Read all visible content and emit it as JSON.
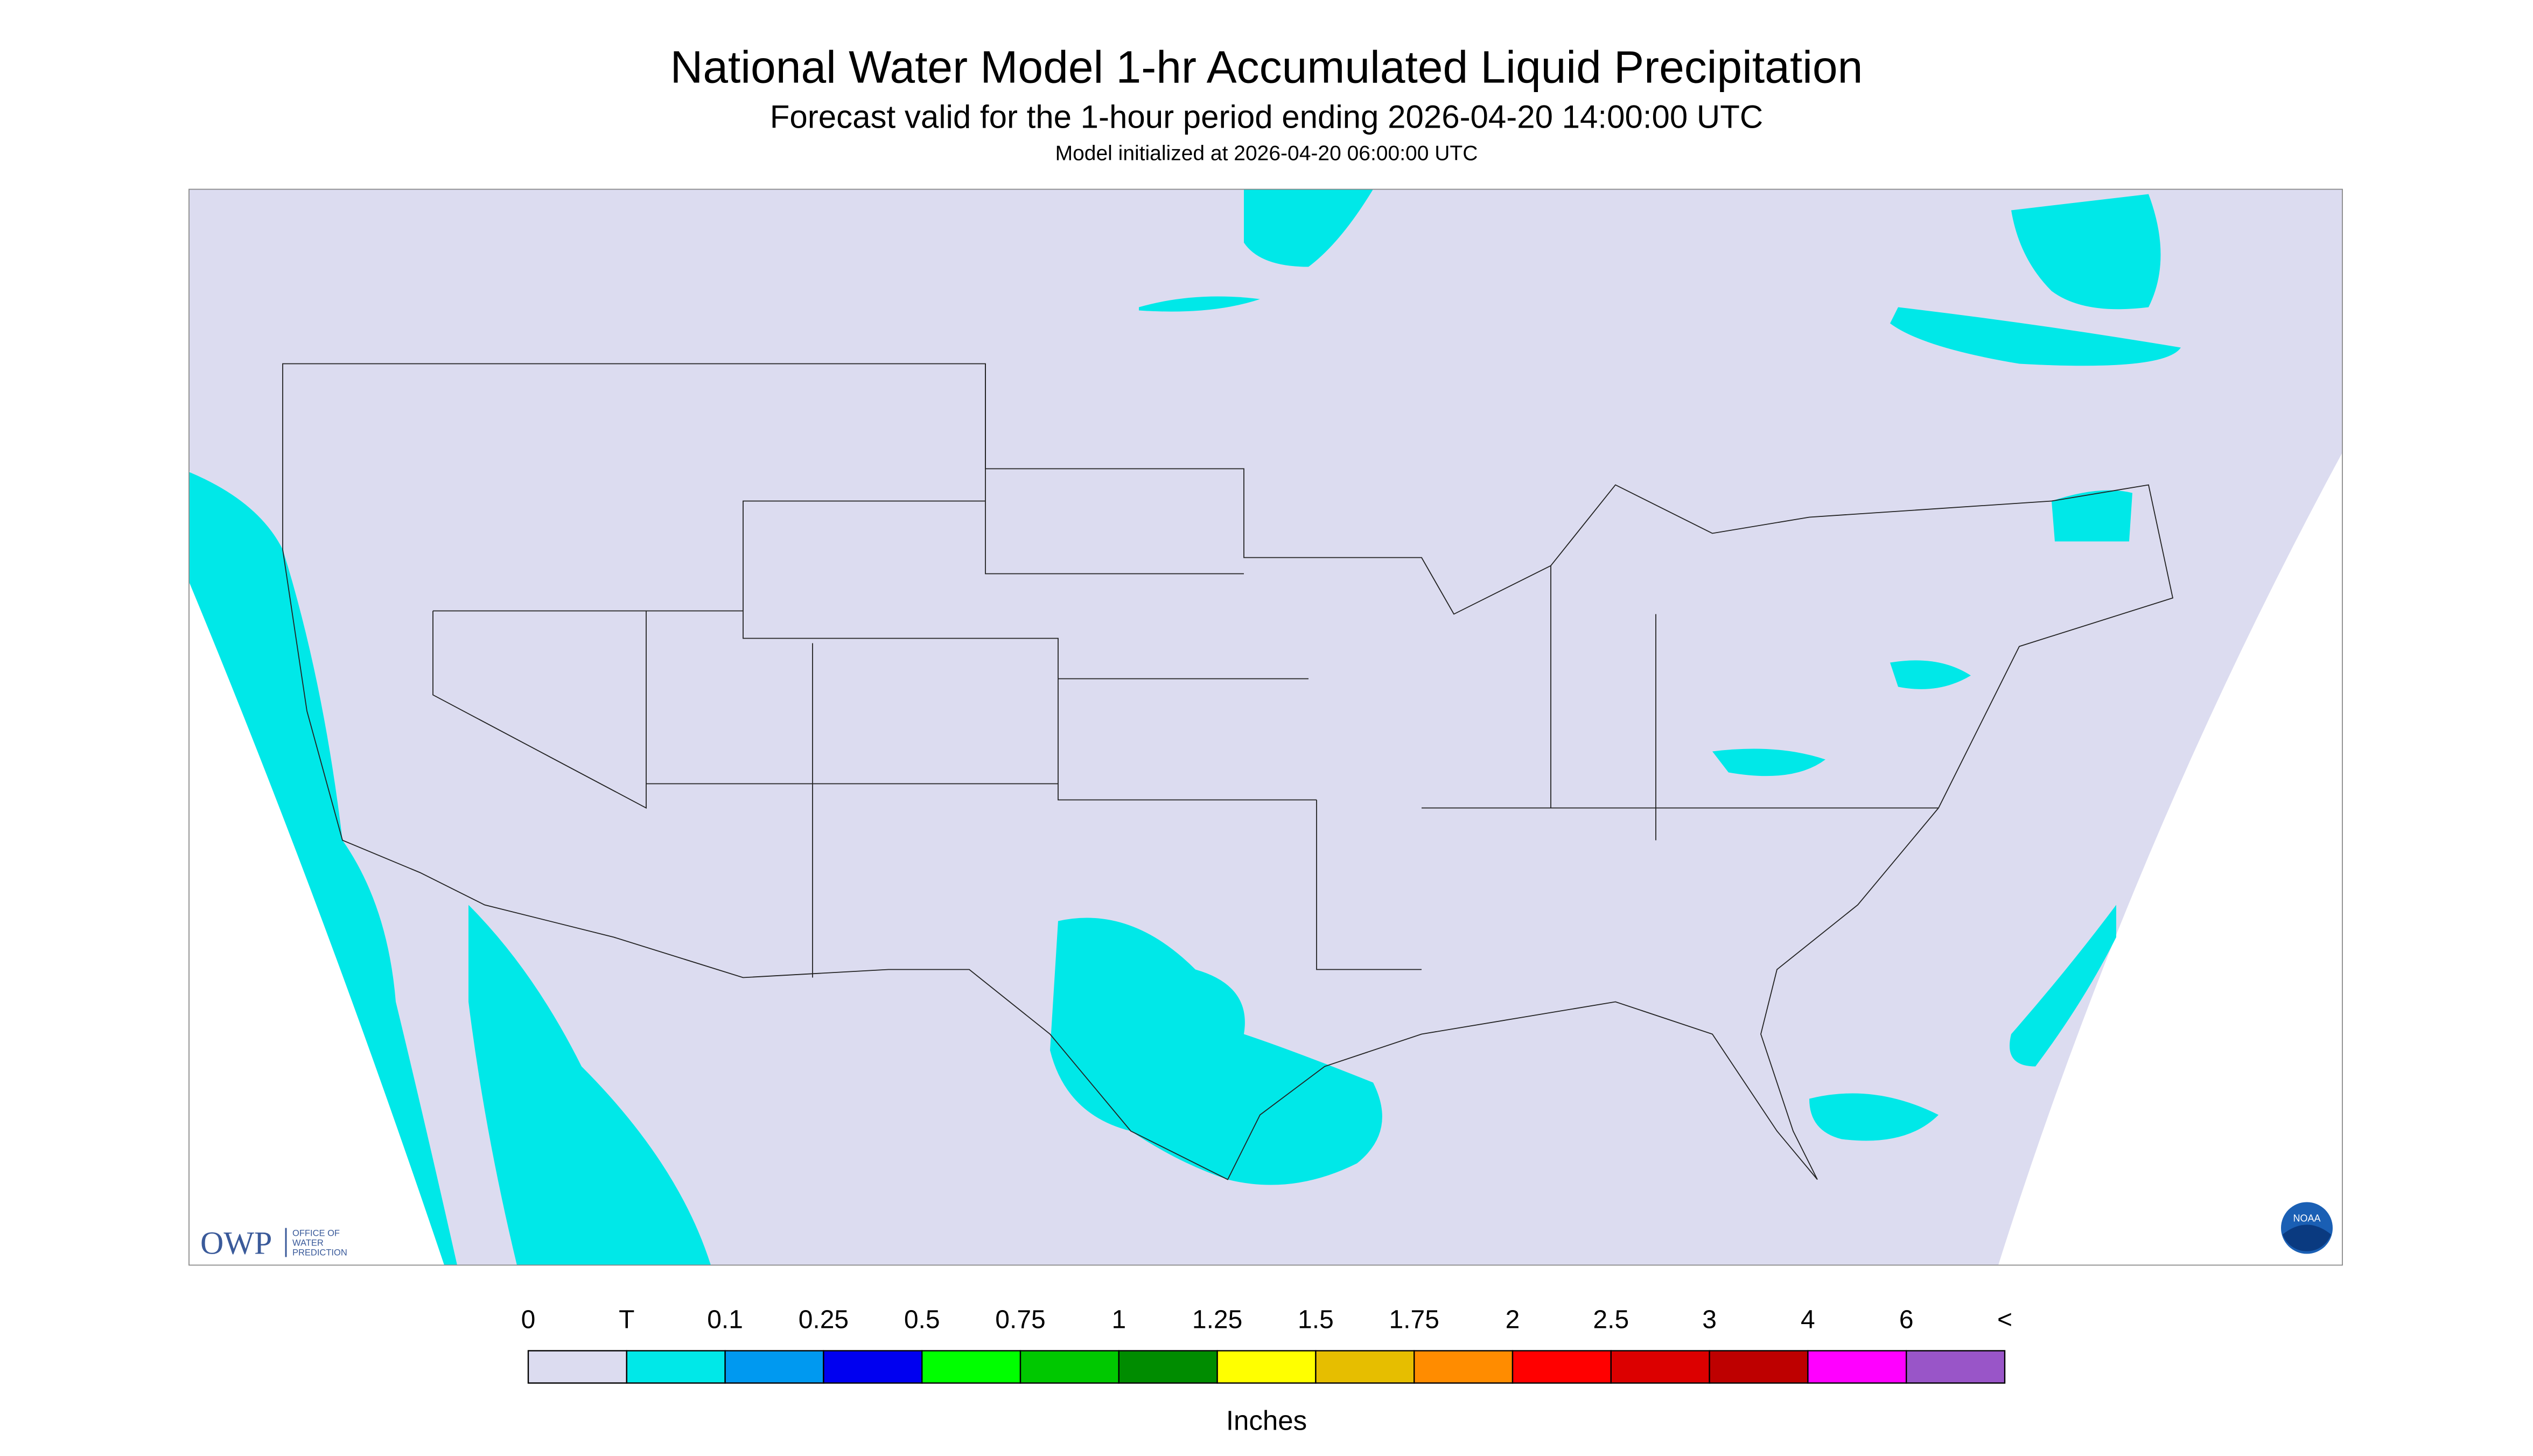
{
  "header": {
    "title": "National Water Model 1-hr Accumulated Liquid Precipitation",
    "subtitle": "Forecast valid for the 1-hour period ending 2026-04-20 14:00:00 UTC",
    "note": "Model initialized at 2026-04-20 06:00:00 UTC"
  },
  "legend": {
    "labels": [
      "0",
      "T",
      "0.1",
      "0.25",
      "0.5",
      "0.75",
      "1",
      "1.25",
      "1.5",
      "1.75",
      "2",
      "2.5",
      "3",
      "4",
      "6",
      "<"
    ],
    "colors": [
      "#dcdcf0",
      "#00e8e8",
      "#0099f0",
      "#0000f0",
      "#00ff00",
      "#00c800",
      "#008c00",
      "#ffff00",
      "#e6be00",
      "#ff8c00",
      "#ff0000",
      "#dc0000",
      "#be0000",
      "#ff00ff",
      "#9955c8"
    ],
    "unit": "Inches"
  },
  "logos": {
    "owp": "OWP",
    "owp_name": [
      "OFFICE OF",
      "WATER",
      "PREDICTION"
    ],
    "noaa": "NOAA"
  }
}
